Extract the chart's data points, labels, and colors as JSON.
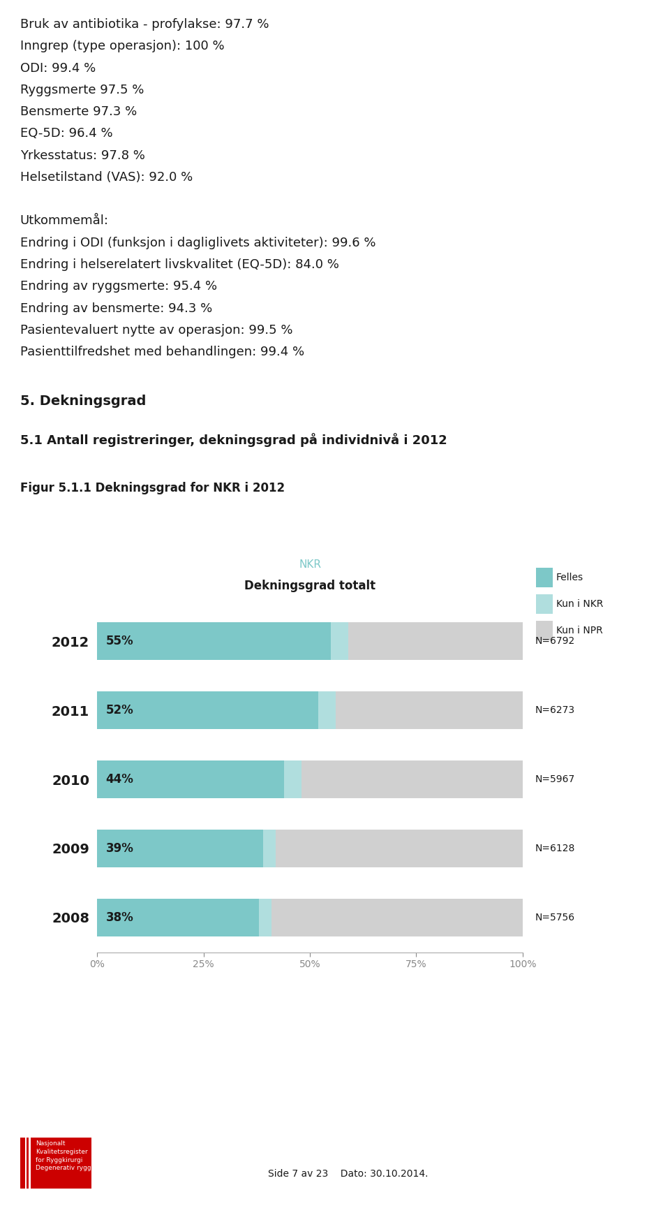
{
  "text_lines": [
    "Bruk av antibiotika - profylakse: 97.7 %",
    "Inngrep (type operasjon): 100 %",
    "ODI: 99.4 %",
    "Ryggsmerte 97.5 %",
    "Bensmerte 97.3 %",
    "EQ-5D: 96.4 %",
    "Yrkesstatus: 97.8 %",
    "Helsetilstand (VAS): 92.0 %",
    "",
    "Utkommemål:",
    "Endring i ODI (funksjon i dagliglivets aktiviteter): 99.6 %",
    "Endring i helserelatert livskvalitet (EQ-5D): 84.0 %",
    "Endring av ryggsmerte: 95.4 %",
    "Endring av bensmerte: 94.3 %",
    "Pasientevaluert nytte av operasjon: 99.5 %",
    "Pasienttilfredshet med behandlingen: 99.4 %"
  ],
  "section_header": "5. Dekningsgrad",
  "subsection_header": "5.1 Antall registreringer, dekningsgrad på individnivå i 2012",
  "figure_caption": "Figur 5.1.1 Dekningsgrad for NKR i 2012",
  "chart_title_nkr": "NKR",
  "chart_title_main": "Dekningsgrad totalt",
  "years": [
    "2012",
    "2011",
    "2010",
    "2009",
    "2008"
  ],
  "felles_pct": [
    55,
    52,
    44,
    39,
    38
  ],
  "kun_nkr_pct": [
    4,
    4,
    4,
    3,
    3
  ],
  "kun_npr_pct": [
    41,
    44,
    52,
    58,
    59
  ],
  "n_values": [
    "N=6792",
    "N=6273",
    "N=5967",
    "N=6128",
    "N=5756"
  ],
  "pct_labels": [
    "55%",
    "52%",
    "44%",
    "39%",
    "38%"
  ],
  "color_felles": "#7dc8c8",
  "color_kun_nkr": "#b0dede",
  "color_kun_npr": "#d0d0d0",
  "legend_labels": [
    "Felles",
    "Kun i NKR",
    "Kun i NPR"
  ],
  "x_ticks": [
    0,
    25,
    50,
    75,
    100
  ],
  "x_tick_labels": [
    "0%",
    "25%",
    "50%",
    "75%",
    "100%"
  ],
  "background_color": "#ffffff",
  "text_color": "#1a1a1a",
  "footer_text": "Side 7 av 23    Dato: 30.10.2014.",
  "logo_text": "Nasjonalt\nKvalitetsregister\nfor Ryggkirurgi\nDegenerativ rygg",
  "text_fontsize": 13,
  "section_fontsize": 14,
  "subsection_fontsize": 13
}
